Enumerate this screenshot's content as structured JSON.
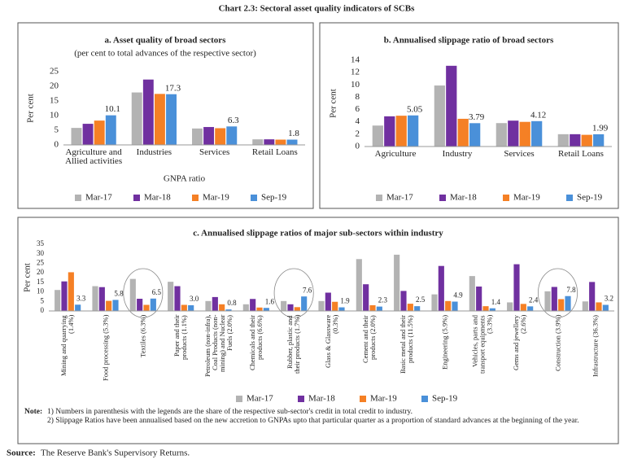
{
  "title": "Chart 2.3: Sectoral asset quality indicators of SCBs",
  "chart_data": [
    {
      "type": "bar",
      "title": "a. Asset quality of broad sectors",
      "subtitle": "(per cent to total advances of the respective sector)",
      "y_label": "Per cent",
      "x_label": "GNPA ratio",
      "categories": [
        "Agriculture and Allied activities",
        "Industries",
        "Services",
        "Retail Loans"
      ],
      "series": [
        {
          "name": "Mar-17",
          "color": "#b3b3b3",
          "values": [
            5.8,
            17.9,
            5.6,
            1.9
          ]
        },
        {
          "name": "Mar-18",
          "color": "#7030a0",
          "values": [
            7.2,
            22.3,
            6.1,
            1.9
          ]
        },
        {
          "name": "Mar-19",
          "color": "#f58025",
          "values": [
            8.3,
            17.4,
            5.7,
            1.8
          ]
        },
        {
          "name": "Sep-19",
          "color": "#4a90d9",
          "values": [
            10.1,
            17.3,
            6.3,
            1.8
          ],
          "value_labels": [
            "10.1",
            "17.3",
            "6.3",
            "1.8"
          ]
        }
      ],
      "ylim": [
        0,
        25
      ],
      "yticks": [
        0,
        5,
        10,
        15,
        20,
        25
      ],
      "grid": false,
      "legend": "bottom"
    },
    {
      "type": "bar",
      "title": "b. Annualised slippage ratio of broad sectors",
      "y_label": "Per cent",
      "categories": [
        "Agriculture",
        "Industry",
        "Services",
        "Retail Loans"
      ],
      "series": [
        {
          "name": "Mar-17",
          "color": "#b3b3b3",
          "values": [
            3.4,
            9.9,
            3.8,
            2.0
          ]
        },
        {
          "name": "Mar-18",
          "color": "#7030a0",
          "values": [
            4.9,
            13.1,
            4.2,
            2.0
          ]
        },
        {
          "name": "Mar-19",
          "color": "#f58025",
          "values": [
            5.0,
            4.5,
            4.0,
            1.9
          ]
        },
        {
          "name": "Sep-19",
          "color": "#4a90d9",
          "values": [
            5.05,
            3.79,
            4.12,
            1.99
          ],
          "value_labels": [
            "5.05",
            "3.79",
            "4.12",
            "1.99"
          ]
        }
      ],
      "ylim": [
        0,
        14
      ],
      "yticks": [
        0,
        2,
        4,
        6,
        8,
        10,
        12,
        14
      ],
      "grid": false,
      "legend": "bottom"
    },
    {
      "type": "bar",
      "title": "c. Annualised slippage ratios of major sub-sectors within industry",
      "y_label": "Per cent",
      "categories": [
        "Mining and quarrying (1.4%)",
        "Food processing (5.3%)",
        "Textiles (6.3%)",
        "Paper and their products (1.1%)",
        "Petroleum (non-infra), Coal Products (non-mining) and Nuclear Fuels (2.0%)",
        "Chemicals and their products (6.6%)",
        "Rubber, plastic and their products (1.7%)",
        "Glass & Glassware (0.3%)",
        "Cement and their products (2.0%)",
        "Basic metal and their products (11.5%)",
        "Engineering (5.9%)",
        "Vehicles, parts and transport equipments (3.3%)",
        "Gems and jewellery (2.6%)",
        "Construction (3.9%)",
        "Infrastructure (36.3%)"
      ],
      "series": [
        {
          "name": "Mar-17",
          "color": "#b3b3b3",
          "values": [
            11,
            13,
            16.8,
            15.3,
            5.2,
            3.5,
            5.2,
            5.2,
            27.2,
            29.5,
            8.7,
            18.3,
            4.5,
            10.3,
            5.0
          ]
        },
        {
          "name": "Mar-18",
          "color": "#7030a0",
          "values": [
            15.5,
            12.5,
            6.4,
            13,
            7.3,
            6.3,
            3.5,
            9.6,
            14,
            10.5,
            23.6,
            12.8,
            24.5,
            12.6,
            15.2
          ]
        },
        {
          "name": "Mar-19",
          "color": "#f58025",
          "values": [
            20.3,
            5.3,
            3.2,
            3.2,
            3.5,
            1.8,
            2.0,
            4.8,
            3.0,
            3.8,
            5.2,
            2.5,
            3.7,
            6.2,
            4.5
          ]
        },
        {
          "name": "Sep-19",
          "color": "#4a90d9",
          "values": [
            3.3,
            5.8,
            6.5,
            3.0,
            0.8,
            1.6,
            7.6,
            1.9,
            2.3,
            2.5,
            4.9,
            1.4,
            2.4,
            7.8,
            3.2
          ],
          "value_labels": [
            "3.3",
            "5.8",
            "6.5",
            "3.0",
            "0.8",
            "1.6",
            "7.6",
            "1.9",
            "2.3",
            "2.5",
            "4.9",
            "1.4",
            "2.4",
            "7.8",
            "3.2"
          ]
        }
      ],
      "ylim": [
        0,
        35
      ],
      "yticks": [
        0,
        5,
        10,
        15,
        20,
        25,
        30,
        35
      ],
      "grid": false,
      "legend": "bottom"
    }
  ],
  "notes": {
    "label": "Note:",
    "items": [
      "1) Numbers in  parenthesis with the legends are the share of the respective sub-sector's credit in total credit to industry.",
      "2) Slippage Ratios have been annualised based on the new accretion to GNPAs upto that particular quarter as a proportion of standard advances at the beginning of the year."
    ]
  },
  "source": {
    "label": "Source:",
    "text": "The Reserve Bank's Supervisory Returns."
  }
}
